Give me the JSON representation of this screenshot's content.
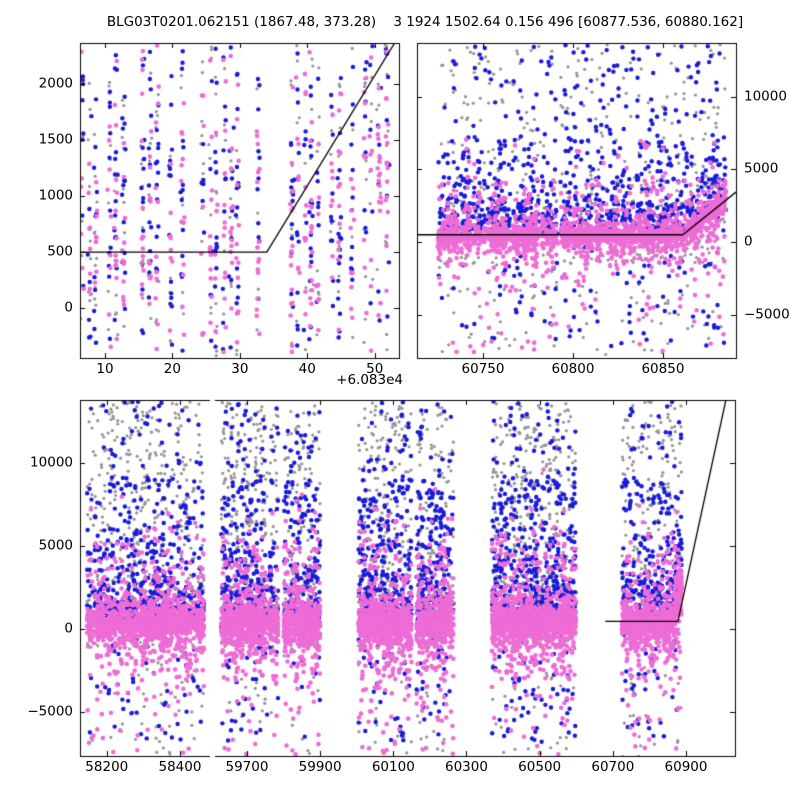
{
  "title": "BLG03T0201.062151 (1867.48, 373.28)    3 1924 1502.64 0.156 496 [60877.536, 60880.162]",
  "chart_data": {
    "type": "scatter",
    "title": "BLG03T0201.062151 (1867.48, 373.28)    3 1924 1502.64 0.156 496 [60877.536, 60880.162]",
    "grid": false,
    "legend": "none",
    "colors": {
      "pink": "#ee6cd6",
      "blue": "#1b1bd8",
      "gray": "#969696",
      "line": "#000000"
    },
    "marker_radius": {
      "pink": 2.3,
      "blue": 2.2,
      "gray": 1.6
    },
    "panels": [
      {
        "id": "top-left-zoom",
        "rect": {
          "l": 80,
          "t": 43,
          "r": 399,
          "b": 358
        },
        "xlim": [
          60836.3,
          60883.6
        ],
        "ylim": [
          -446,
          2366
        ],
        "spines": [
          "l",
          "r",
          "t",
          "b"
        ],
        "xticks": {
          "values": [
            60840,
            60850,
            60860,
            60870,
            60880
          ],
          "labels": [
            "10",
            "20",
            "30",
            "40",
            "50"
          ],
          "side": "bottom"
        },
        "yticks": {
          "values": [
            0,
            500,
            1000,
            1500,
            2000
          ],
          "labels": [
            "0",
            "500",
            "1000",
            "1500",
            "2000"
          ],
          "side": "left"
        },
        "x_offset_text": "+6.083e4",
        "model_line": [
          [
            60836.3,
            500
          ],
          [
            60864.0,
            500
          ],
          [
            60883.6,
            2430
          ]
        ],
        "clusters": [
          {
            "x0": 60836.5,
            "x1": 60881.8,
            "step": 1,
            "skip": 0.1,
            "jitter": 0.13,
            "gaps": [
              [
                60838.6,
                60839.9
              ],
              [
                60843.4,
                60845.1
              ],
              [
                60852.3,
                60854.1
              ],
              [
                60862.6,
                60867.4
              ],
              [
                60877.1,
                60878.3
              ]
            ],
            "per_night": {
              "pink": 12,
              "blue": 11,
              "gray": 8
            },
            "rise": {
              "t0": 60864,
              "slope": 100,
              "f": 0.45
            }
          }
        ],
        "ydist": {
          "pink": [
            {
              "w": 0.6,
              "kind": "lap",
              "mu": 500,
              "s": 470,
              "band": true
            },
            {
              "w": 0.4,
              "kind": "uni",
              "a": -430,
              "b": 2350
            }
          ],
          "blue": [
            {
              "w": 0.5,
              "kind": "gau",
              "mu": 700,
              "s": 650,
              "band": true
            },
            {
              "w": 0.5,
              "kind": "uni",
              "a": -430,
              "b": 2350
            }
          ],
          "gray": [
            {
              "w": 1.0,
              "kind": "uni",
              "a": -430,
              "b": 2350
            }
          ]
        }
      },
      {
        "id": "top-right-season",
        "rect": {
          "l": 417,
          "t": 43,
          "r": 736,
          "b": 358
        },
        "xlim": [
          60713.3,
          60890.6
        ],
        "ylim": [
          -7978,
          13686
        ],
        "spines": [
          "l",
          "r",
          "t",
          "b"
        ],
        "xticks": {
          "values": [
            60750,
            60800,
            60850
          ],
          "labels": [
            "60750",
            "60800",
            "60850"
          ],
          "side": "bottom"
        },
        "yticks": {
          "values": [
            -5000,
            0,
            5000,
            10000
          ],
          "labels": [
            "−5000",
            "0",
            "5000",
            "10000"
          ],
          "side": "right"
        },
        "x_offset_text": "",
        "model_line": [
          [
            60713.3,
            500
          ],
          [
            60861.0,
            500
          ],
          [
            60890.6,
            3430
          ]
        ],
        "clusters": [
          {
            "x0": 60725.5,
            "x1": 60884.5,
            "step": 1,
            "skip": 0.13,
            "jitter": 0.35,
            "gaps": [],
            "per_night": {
              "pink": 15,
              "blue": 8,
              "gray": 4
            },
            "rise": {
              "t0": 60861,
              "slope": 100,
              "f": 1.0
            }
          }
        ],
        "ydist": {
          "pink": [
            {
              "w": 0.72,
              "kind": "lap",
              "mu": 420,
              "s": 420,
              "band": true
            },
            {
              "w": 0.13,
              "kind": "lap",
              "mu": 420,
              "s": 1300,
              "band": true
            },
            {
              "w": 0.09,
              "kind": "uni",
              "a": -2500,
              "b": 4500
            },
            {
              "w": 0.06,
              "kind": "uni",
              "a": -7600,
              "b": 7000
            }
          ],
          "blue": [
            {
              "w": 0.48,
              "kind": "gauabs",
              "mu": 250,
              "s": 1500,
              "band": true
            },
            {
              "w": 0.27,
              "kind": "uni",
              "a": 500,
              "b": 7000
            },
            {
              "w": 0.17,
              "kind": "uni",
              "a": 2500,
              "b": 13600
            },
            {
              "w": 0.08,
              "kind": "uni",
              "a": -7200,
              "b": -300
            }
          ],
          "gray": [
            {
              "w": 0.5,
              "kind": "uni",
              "a": 800,
              "b": 13600
            },
            {
              "w": 0.32,
              "kind": "uni",
              "a": -1500,
              "b": 3000
            },
            {
              "w": 0.18,
              "kind": "uni",
              "a": -7800,
              "b": 500
            }
          ]
        }
      },
      {
        "id": "bottom-left-broken",
        "rect": {
          "l": 80,
          "t": 400,
          "r": 210,
          "b": 756
        },
        "xlim": [
          58126.8,
          58482.0
        ],
        "ylim": [
          -7651,
          13795
        ],
        "spines": [
          "l",
          "t",
          "b"
        ],
        "xticks": {
          "values": [
            58200,
            58400
          ],
          "labels": [
            "58200",
            "58400"
          ],
          "side": "bottom"
        },
        "yticks": {
          "values": [
            -5000,
            0,
            5000,
            10000
          ],
          "labels": [
            "−5000",
            "0",
            "5000",
            "10000"
          ],
          "side": "left"
        },
        "x_offset_text": "",
        "model_line": null,
        "clusters": [
          {
            "x0": 58145,
            "x1": 58465,
            "step": 1.3,
            "skip": 0.15,
            "jitter": 0.15,
            "gaps": [],
            "totals": {
              "pink": 1300,
              "blue": 600,
              "gray": 520
            }
          }
        ],
        "ydist": {
          "pink": [
            {
              "w": 0.68,
              "kind": "lap",
              "mu": 350,
              "s": 500,
              "band": true
            },
            {
              "w": 0.16,
              "kind": "lap",
              "mu": 350,
              "s": 1400,
              "band": true
            },
            {
              "w": 0.1,
              "kind": "uni",
              "a": -3000,
              "b": 5500
            },
            {
              "w": 0.06,
              "kind": "uni",
              "a": -7600,
              "b": 7300
            }
          ],
          "blue": [
            {
              "w": 0.5,
              "kind": "gauabs",
              "mu": 100,
              "s": 1900,
              "band": true
            },
            {
              "w": 0.28,
              "kind": "uni",
              "a": 500,
              "b": 9000
            },
            {
              "w": 0.14,
              "kind": "uni",
              "a": 4000,
              "b": 13700
            },
            {
              "w": 0.08,
              "kind": "uni",
              "a": -6800,
              "b": -200
            }
          ],
          "gray": [
            {
              "w": 0.5,
              "kind": "uni",
              "a": 1200,
              "b": 13700
            },
            {
              "w": 0.3,
              "kind": "uni",
              "a": -1200,
              "b": 3200
            },
            {
              "w": 0.12,
              "kind": "uni",
              "a": 3000,
              "b": 13700
            },
            {
              "w": 0.08,
              "kind": "uni",
              "a": -7700,
              "b": -500
            }
          ]
        }
      },
      {
        "id": "bottom-right-broken",
        "rect": {
          "l": 215,
          "t": 400,
          "r": 735,
          "b": 756
        },
        "xlim": [
          59612.6,
          61033.9
        ],
        "ylim": [
          -7651,
          13795
        ],
        "spines": [
          "r",
          "t",
          "b"
        ],
        "xticks": {
          "values": [
            59700,
            59900,
            60100,
            60300,
            60500,
            60700,
            60900
          ],
          "labels": [
            "59700",
            "59900",
            "60100",
            "60300",
            "60500",
            "60700",
            "60900"
          ],
          "side": "bottom"
        },
        "yticks": {
          "values": [
            -5000,
            0,
            5000,
            10000
          ],
          "labels": [],
          "side": "none"
        },
        "x_offset_text": "",
        "model_line": [
          [
            60679,
            460
          ],
          [
            60878,
            460
          ],
          [
            61010,
            13900
          ]
        ],
        "clusters": [
          {
            "x0": 59630,
            "x1": 59900,
            "step": 1.3,
            "skip": 0.15,
            "jitter": 0.15,
            "gaps": [
              [
                59786,
                59800
              ]
            ],
            "totals": {
              "pink": 1400,
              "blue": 640,
              "gray": 470
            }
          },
          {
            "x0": 60005,
            "x1": 60265,
            "step": 1.3,
            "skip": 0.15,
            "jitter": 0.15,
            "gaps": [
              [
                60150,
                60163
              ]
            ],
            "totals": {
              "pink": 1400,
              "blue": 660,
              "gray": 450
            }
          },
          {
            "x0": 60370,
            "x1": 60600,
            "step": 1.3,
            "skip": 0.15,
            "jitter": 0.15,
            "gaps": [],
            "totals": {
              "pink": 1300,
              "blue": 640,
              "gray": 450
            }
          },
          {
            "x0": 60725,
            "x1": 60888,
            "step": 1.3,
            "skip": 0.2,
            "jitter": 0.15,
            "gaps": [],
            "totals": {
              "pink": 850,
              "blue": 360,
              "gray": 260
            },
            "rise": {
              "t0": 60865,
              "slope": 105,
              "f": 1.0
            }
          }
        ],
        "ydist": {
          "pink": [
            {
              "w": 0.68,
              "kind": "lap",
              "mu": 350,
              "s": 500,
              "band": true
            },
            {
              "w": 0.16,
              "kind": "lap",
              "mu": 350,
              "s": 1400,
              "band": true
            },
            {
              "w": 0.1,
              "kind": "uni",
              "a": -3000,
              "b": 5500
            },
            {
              "w": 0.06,
              "kind": "uni",
              "a": -7600,
              "b": 7300
            }
          ],
          "blue": [
            {
              "w": 0.5,
              "kind": "gauabs",
              "mu": 100,
              "s": 1900,
              "band": true
            },
            {
              "w": 0.28,
              "kind": "uni",
              "a": 500,
              "b": 9000
            },
            {
              "w": 0.14,
              "kind": "uni",
              "a": 4000,
              "b": 13700
            },
            {
              "w": 0.08,
              "kind": "uni",
              "a": -6800,
              "b": -200
            }
          ],
          "gray": [
            {
              "w": 0.5,
              "kind": "uni",
              "a": 1200,
              "b": 13700
            },
            {
              "w": 0.3,
              "kind": "uni",
              "a": -1200,
              "b": 3200
            },
            {
              "w": 0.12,
              "kind": "uni",
              "a": 3000,
              "b": 13700
            },
            {
              "w": 0.08,
              "kind": "uni",
              "a": -7700,
              "b": -500
            }
          ]
        }
      }
    ]
  }
}
